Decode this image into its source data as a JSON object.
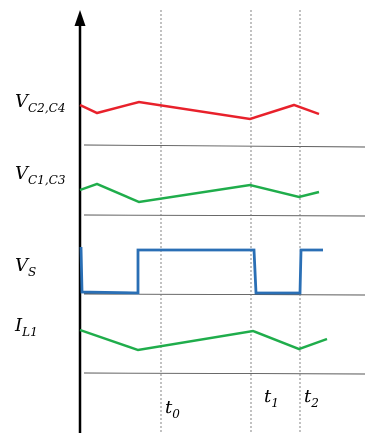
{
  "colors": {
    "red": "#e8212b",
    "green": "#1fad4b",
    "blue": "#2a6fb5",
    "axis": "#000000",
    "baseline": "#555555",
    "dotted": "#777777"
  },
  "signals": [
    {
      "name": "V",
      "sub": "C2,C4",
      "color": "red"
    },
    {
      "name": "V",
      "sub": "C1,C3",
      "color": "green"
    },
    {
      "name": "V",
      "sub": "S",
      "color": "blue"
    },
    {
      "name": "I",
      "sub": "L1",
      "color": "green"
    }
  ],
  "time_markers": [
    {
      "name": "t",
      "sub": "0"
    },
    {
      "name": "t",
      "sub": "1"
    },
    {
      "name": "t",
      "sub": "2"
    }
  ]
}
